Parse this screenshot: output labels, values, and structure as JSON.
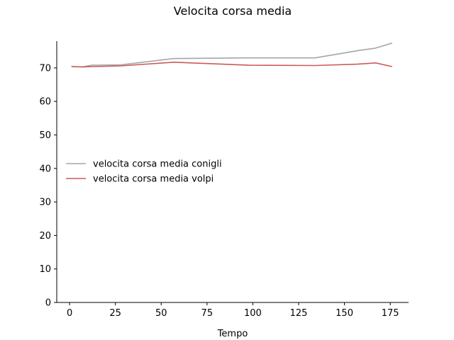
{
  "chart_data": {
    "type": "line",
    "title": "Velocita corsa media",
    "xlabel": "Tempo",
    "ylabel": "",
    "xlim": [
      -7,
      185
    ],
    "ylim": [
      0,
      78
    ],
    "xticks": [
      0,
      25,
      50,
      75,
      100,
      125,
      150,
      175
    ],
    "yticks": [
      0,
      10,
      20,
      30,
      40,
      50,
      60,
      70
    ],
    "grid": false,
    "legend_position": "center-left",
    "series": [
      {
        "name": "velocita corsa media conigli",
        "color": "#a6a6a6",
        "x": [
          1,
          7,
          12,
          28,
          57,
          98,
          134,
          158,
          167,
          176
        ],
        "y": [
          70.4,
          70.3,
          70.8,
          70.9,
          72.8,
          73.0,
          73.0,
          75.2,
          75.9,
          77.4
        ]
      },
      {
        "name": "velocita corsa media volpi",
        "color": "#cc5a5a",
        "x": [
          1,
          7,
          28,
          57,
          98,
          134,
          157,
          167,
          176
        ],
        "y": [
          70.4,
          70.3,
          70.6,
          71.7,
          70.8,
          70.7,
          71.1,
          71.5,
          70.4
        ]
      }
    ]
  }
}
